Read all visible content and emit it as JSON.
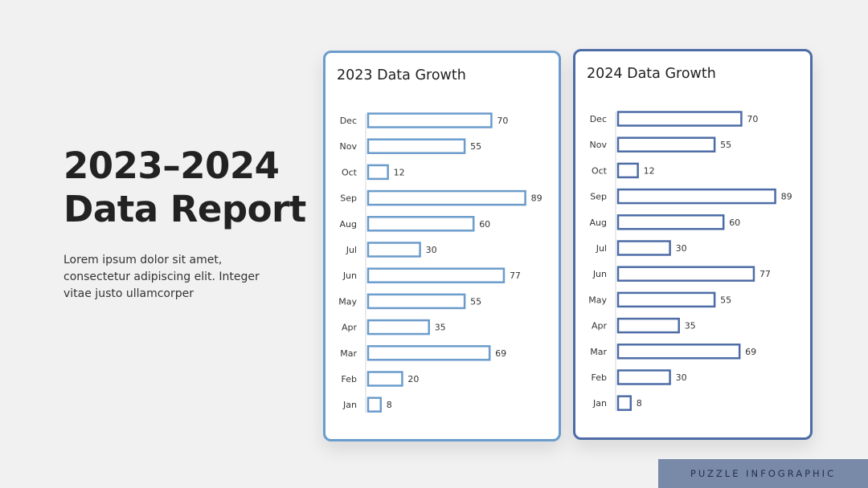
{
  "report": {
    "title_line1": "2023–2024",
    "title_line2": "Data Report",
    "description": "Lorem ipsum dolor sit amet, consectetur adipiscing elit. Integer vitae justo ullamcorper"
  },
  "footer": {
    "label": "PUZZLE INFOGRAPHIC"
  },
  "colors": {
    "accent_2023": "#6b9ccc",
    "accent_2024": "#4d6ca6",
    "background": "#f1f1f2",
    "footer_bg": "#7989a8"
  },
  "chart_data": [
    {
      "type": "bar",
      "orientation": "horizontal",
      "title": "2023 Data Growth",
      "categories": [
        "Dec",
        "Nov",
        "Oct",
        "Sep",
        "Aug",
        "Jul",
        "Jun",
        "May",
        "Apr",
        "Mar",
        "Feb",
        "Jan"
      ],
      "values": [
        70,
        55,
        12,
        89,
        60,
        30,
        77,
        55,
        35,
        69,
        20,
        8
      ],
      "data_labels": true,
      "grid": false,
      "color": "#6b9ccc"
    },
    {
      "type": "bar",
      "orientation": "horizontal",
      "title": "2024 Data Growth",
      "categories": [
        "Dec",
        "Nov",
        "Oct",
        "Sep",
        "Aug",
        "Jul",
        "Jun",
        "May",
        "Apr",
        "Mar",
        "Feb",
        "Jan"
      ],
      "values": [
        70,
        55,
        12,
        89,
        60,
        30,
        77,
        55,
        35,
        69,
        30,
        8
      ],
      "data_labels": true,
      "grid": false,
      "color": "#4d6ca6"
    }
  ]
}
